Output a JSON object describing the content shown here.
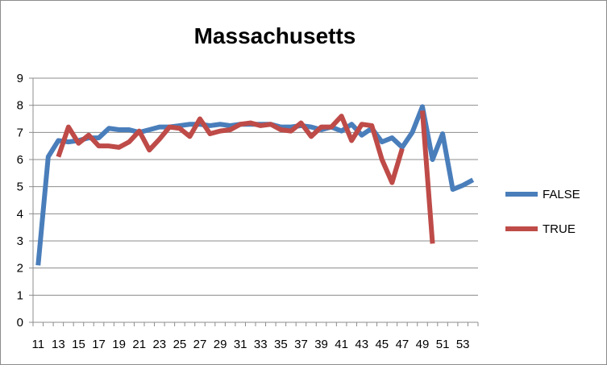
{
  "chart_data": {
    "type": "line",
    "title": "Massachusetts",
    "xlabel": "",
    "ylabel": "",
    "ylim": [
      0,
      9
    ],
    "yticks": [
      "0",
      "1",
      "2",
      "3",
      "4",
      "5",
      "6",
      "7",
      "8",
      "9"
    ],
    "xticks": [
      "11",
      "13",
      "15",
      "17",
      "19",
      "21",
      "23",
      "25",
      "27",
      "29",
      "31",
      "33",
      "35",
      "37",
      "39",
      "41",
      "43",
      "45",
      "47",
      "49",
      "51",
      "53"
    ],
    "x": [
      11,
      12,
      13,
      14,
      15,
      16,
      17,
      18,
      19,
      20,
      21,
      22,
      23,
      24,
      25,
      26,
      27,
      28,
      29,
      30,
      31,
      32,
      33,
      34,
      35,
      36,
      37,
      38,
      39,
      40,
      41,
      42,
      43,
      44,
      45,
      46,
      47,
      48,
      49,
      50,
      51,
      52,
      53,
      54
    ],
    "grid": true,
    "legend_position": "right",
    "series": [
      {
        "name": "FALSE",
        "color": "#4a7ebb",
        "values": [
          2.1,
          6.1,
          6.7,
          6.65,
          6.7,
          6.8,
          6.8,
          7.15,
          7.1,
          7.1,
          7.0,
          7.1,
          7.2,
          7.2,
          7.25,
          7.3,
          7.3,
          7.25,
          7.3,
          7.25,
          7.3,
          7.3,
          7.3,
          7.3,
          7.2,
          7.2,
          7.25,
          7.2,
          7.1,
          7.2,
          7.05,
          7.3,
          6.9,
          7.15,
          6.65,
          6.8,
          6.45,
          7.0,
          7.95,
          6.0,
          6.95,
          4.9,
          5.05,
          5.25
        ]
      },
      {
        "name": "TRUE",
        "color": "#be4b48",
        "values": [
          null,
          null,
          6.1,
          7.2,
          6.6,
          6.9,
          6.5,
          6.5,
          6.45,
          6.65,
          7.05,
          6.35,
          6.75,
          7.2,
          7.15,
          6.85,
          7.5,
          6.95,
          7.05,
          7.1,
          7.3,
          7.35,
          7.25,
          7.3,
          7.1,
          7.05,
          7.35,
          6.85,
          7.2,
          7.2,
          7.6,
          6.7,
          7.3,
          7.25,
          6.0,
          5.15,
          6.4,
          null,
          7.8,
          2.9,
          null,
          null,
          null,
          null
        ]
      }
    ]
  }
}
